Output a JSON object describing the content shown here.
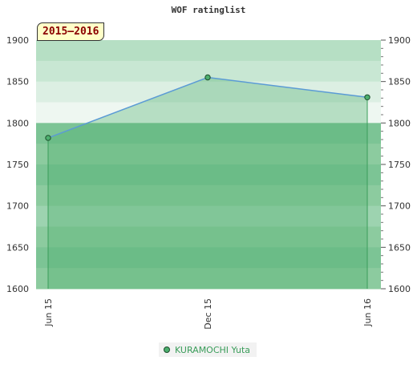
{
  "chart_data": {
    "type": "area",
    "title": "WOF ratinglist",
    "badge": "2015–2016",
    "xlabel": "",
    "ylabel": "",
    "categories": [
      "Jun 15",
      "Dec 15",
      "Jun 16"
    ],
    "series": [
      {
        "name": "KURAMOCHI Yuta",
        "values": [
          1782,
          1855,
          1831
        ]
      }
    ],
    "ylim": [
      1600,
      1900
    ],
    "yticks": [
      1600,
      1650,
      1700,
      1750,
      1800,
      1850,
      1900
    ],
    "grid": true,
    "legend_position": "bottom-center",
    "colors": {
      "line": "#5b9bd5",
      "fill": "#4caf6e",
      "marker": "#4caf6e",
      "band_dark": "#7cc495",
      "band_light": "#eaf6ee"
    }
  }
}
